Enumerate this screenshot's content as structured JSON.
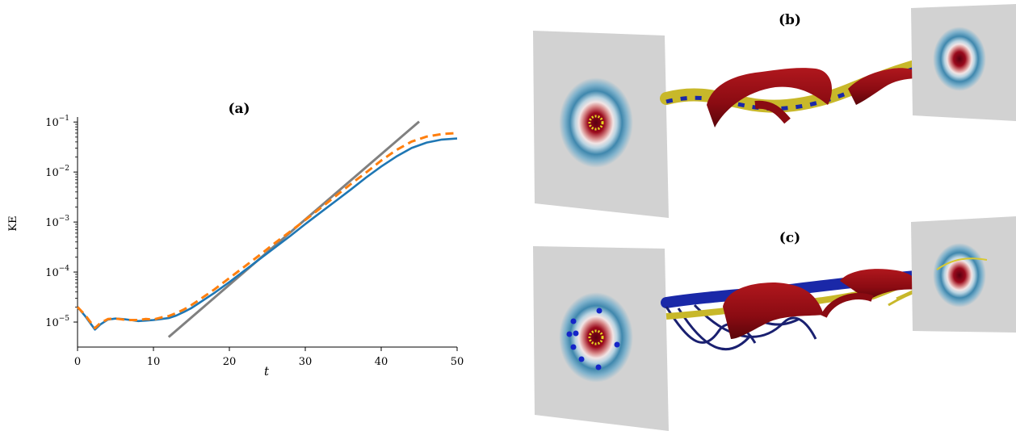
{
  "panels": {
    "a": {
      "label": "(a)"
    },
    "b": {
      "label": "(b)"
    },
    "c": {
      "label": "(c)"
    }
  },
  "chart_data": {
    "type": "line",
    "title": "(a)",
    "xlabel": "t",
    "ylabel": "KE",
    "xlim": [
      0,
      50
    ],
    "ylim_log10": [
      -5.5,
      -0.9
    ],
    "yscale": "log",
    "grid": false,
    "xticks": [
      0,
      10,
      20,
      30,
      40,
      50
    ],
    "xtick_labels": [
      "0",
      "10",
      "20",
      "30",
      "40",
      "50"
    ],
    "ytick_exponents": [
      -5,
      -4,
      -3,
      -2,
      -1
    ],
    "ytick_base": "10",
    "colors": {
      "solid": "#1f77b4",
      "dashed": "#ff7f0e",
      "fit": "#808080"
    },
    "series": [
      {
        "style": "solid",
        "x": [
          0,
          1,
          2.3,
          3,
          4,
          5,
          6,
          7,
          8,
          9,
          10,
          11,
          12,
          13,
          14,
          15,
          16,
          18,
          20,
          22,
          24,
          26,
          28,
          30,
          32,
          34,
          36,
          38,
          40,
          42,
          44,
          46,
          48,
          50
        ],
        "log10y": [
          -4.7,
          -4.88,
          -5.15,
          -5.05,
          -4.95,
          -4.93,
          -4.94,
          -4.96,
          -4.98,
          -4.97,
          -4.96,
          -4.94,
          -4.92,
          -4.87,
          -4.8,
          -4.72,
          -4.62,
          -4.42,
          -4.2,
          -3.97,
          -3.74,
          -3.51,
          -3.28,
          -3.04,
          -2.81,
          -2.58,
          -2.35,
          -2.11,
          -1.89,
          -1.69,
          -1.52,
          -1.41,
          -1.35,
          -1.33
        ]
      },
      {
        "style": "dashed",
        "x": [
          0,
          1,
          2.3,
          3,
          4,
          5,
          6,
          7,
          8,
          9,
          10,
          11,
          12,
          13,
          14,
          15,
          16,
          18,
          20,
          22,
          24,
          26,
          28,
          30,
          32,
          34,
          36,
          38,
          40,
          42,
          44,
          46,
          48,
          50
        ],
        "log10y": [
          -4.7,
          -4.86,
          -5.12,
          -5.02,
          -4.94,
          -4.93,
          -4.95,
          -4.96,
          -4.96,
          -4.94,
          -4.95,
          -4.91,
          -4.88,
          -4.82,
          -4.75,
          -4.66,
          -4.56,
          -4.35,
          -4.12,
          -3.89,
          -3.66,
          -3.42,
          -3.19,
          -2.96,
          -2.72,
          -2.48,
          -2.24,
          -2.01,
          -1.77,
          -1.56,
          -1.39,
          -1.29,
          -1.24,
          -1.22
        ]
      },
      {
        "style": "fit",
        "x": [
          12,
          45
        ],
        "log10y": [
          -5.3,
          -0.99
        ]
      }
    ]
  }
}
